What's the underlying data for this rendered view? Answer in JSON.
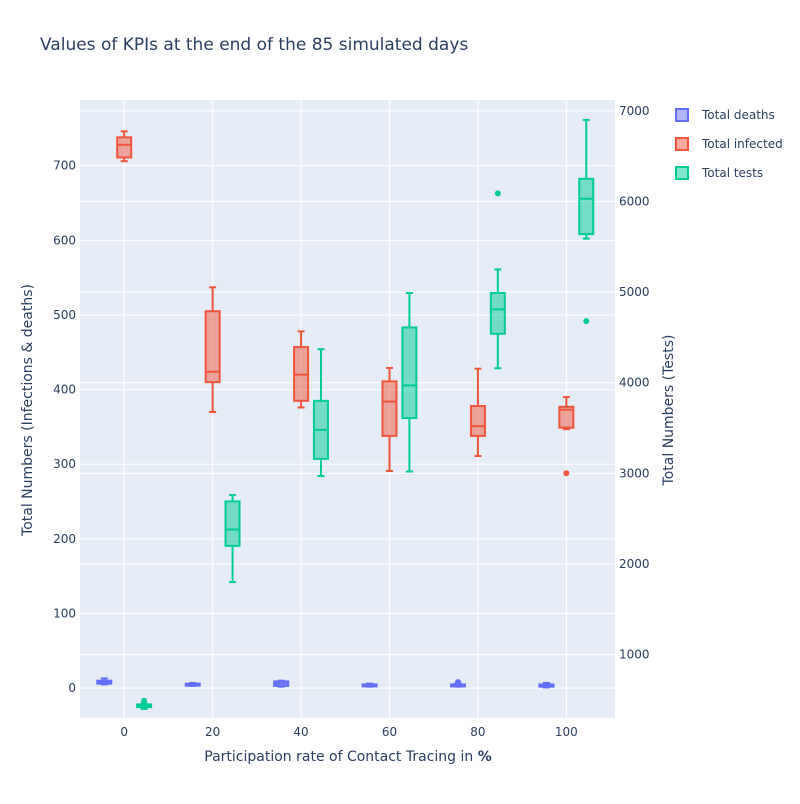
{
  "chart_data": {
    "type": "box",
    "title": "Values of KPIs at the end of the 85 simulated days",
    "xlabel_prefix": "Participation rate of Contact Tracing in ",
    "xlabel_bold": "%",
    "ylabel": "Total Numbers (Infections & deaths)",
    "y2label": "Total Numbers (Tests)",
    "x_ticks": [
      0,
      20,
      40,
      60,
      80,
      100
    ],
    "x_range": [
      -10,
      111
    ],
    "ylim": [
      -40,
      788
    ],
    "y_ticks": [
      0,
      100,
      200,
      300,
      400,
      500,
      600,
      700
    ],
    "y2lim": [
      300,
      7120
    ],
    "y2_ticks": [
      1000,
      2000,
      3000,
      4000,
      5000,
      6000,
      7000
    ],
    "grid": true,
    "legend_position": "top-right",
    "background_color": "#e5ecf6",
    "series": [
      {
        "name": "Total deaths",
        "color": "#636efa",
        "fill": "rgba(99,110,250,0.5)",
        "axis": "y",
        "offset": -4.5,
        "boxes": [
          {
            "x": 0,
            "min": 5,
            "q1": 6,
            "median": 8,
            "q3": 10,
            "max": 13,
            "outliers": []
          },
          {
            "x": 20,
            "min": 3,
            "q1": 4,
            "median": 5,
            "q3": 6,
            "max": 7,
            "outliers": []
          },
          {
            "x": 40,
            "min": 2,
            "q1": 3,
            "median": 6,
            "q3": 9,
            "max": 10,
            "outliers": []
          },
          {
            "x": 60,
            "min": 2,
            "q1": 3,
            "median": 4,
            "q3": 5,
            "max": 6,
            "outliers": []
          },
          {
            "x": 80,
            "min": 2,
            "q1": 3,
            "median": 4,
            "q3": 5,
            "max": 6,
            "outliers": [
              8
            ]
          },
          {
            "x": 100,
            "min": 1,
            "q1": 2,
            "median": 4,
            "q3": 5,
            "max": 7,
            "outliers": []
          }
        ]
      },
      {
        "name": "Total infected",
        "color": "#ef553b",
        "fill": "rgba(239,85,59,0.5)",
        "axis": "y",
        "offset": 0,
        "boxes": [
          {
            "x": 0,
            "min": 706,
            "q1": 711,
            "median": 728,
            "q3": 738,
            "max": 746,
            "outliers": []
          },
          {
            "x": 20,
            "min": 370,
            "q1": 410,
            "median": 424,
            "q3": 505,
            "max": 537,
            "outliers": []
          },
          {
            "x": 40,
            "min": 376,
            "q1": 385,
            "median": 420,
            "q3": 457,
            "max": 478,
            "outliers": []
          },
          {
            "x": 60,
            "min": 291,
            "q1": 338,
            "median": 384,
            "q3": 411,
            "max": 429,
            "outliers": []
          },
          {
            "x": 80,
            "min": 311,
            "q1": 338,
            "median": 351,
            "q3": 378,
            "max": 428,
            "outliers": []
          },
          {
            "x": 100,
            "min": 347,
            "q1": 349,
            "median": 373,
            "q3": 377,
            "max": 390,
            "outliers": [
              288
            ]
          }
        ]
      },
      {
        "name": "Total tests",
        "color": "#00cc96",
        "fill": "rgba(0,204,150,0.5)",
        "axis": "y2",
        "offset": 4.5,
        "boxes": [
          {
            "x": 0,
            "min": 400,
            "q1": 420,
            "median": 430,
            "q3": 450,
            "max": 460,
            "outliers": [
              490
            ]
          },
          {
            "x": 20,
            "min": 1800,
            "q1": 2200,
            "median": 2380,
            "q3": 2690,
            "max": 2760,
            "outliers": []
          },
          {
            "x": 40,
            "min": 2970,
            "q1": 3160,
            "median": 3480,
            "q3": 3800,
            "max": 4370,
            "outliers": []
          },
          {
            "x": 60,
            "min": 3020,
            "q1": 3610,
            "median": 3970,
            "q3": 4610,
            "max": 4990,
            "outliers": []
          },
          {
            "x": 80,
            "min": 4160,
            "q1": 4540,
            "median": 4810,
            "q3": 4990,
            "max": 5250,
            "outliers": [
              6090
            ]
          },
          {
            "x": 100,
            "min": 5590,
            "q1": 5640,
            "median": 6030,
            "q3": 6250,
            "max": 6900,
            "outliers": [
              4680
            ]
          }
        ]
      }
    ]
  }
}
